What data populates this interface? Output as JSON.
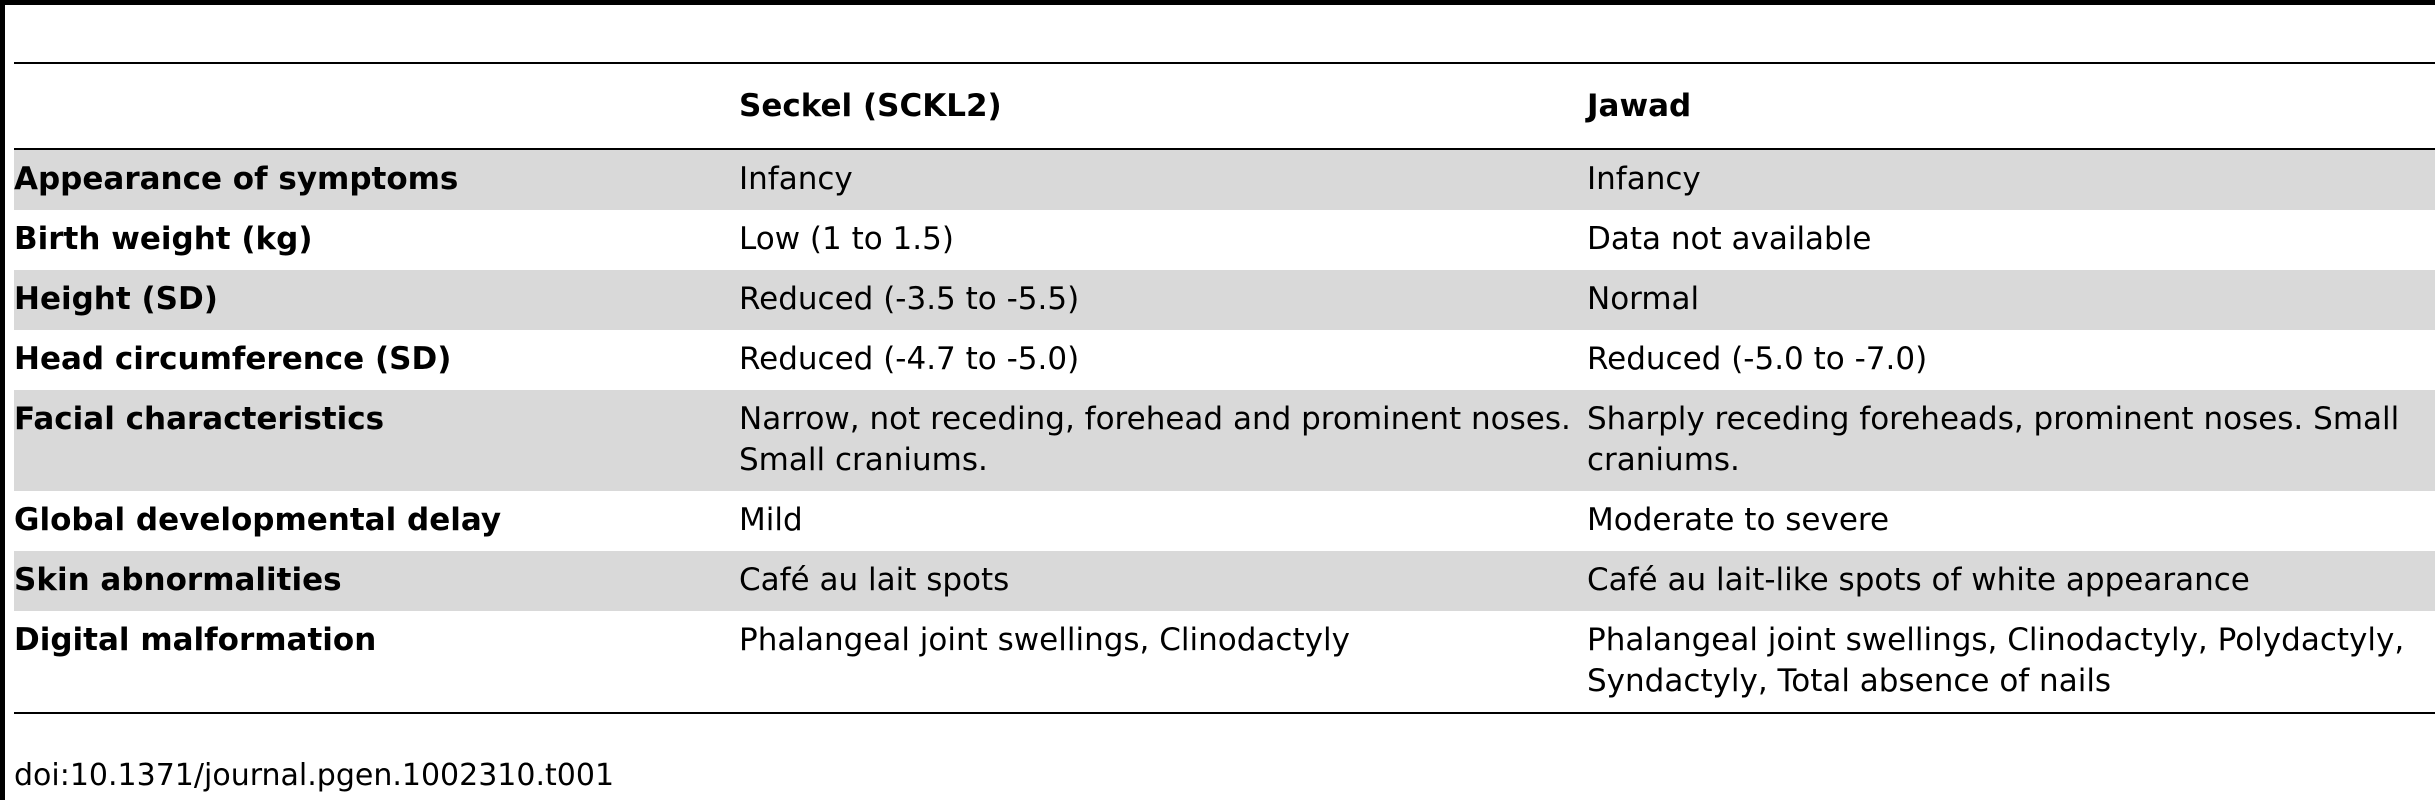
{
  "table": {
    "columns": [
      "",
      "Seckel (SCKL2)",
      "Jawad"
    ],
    "rows": [
      {
        "label": "Appearance of symptoms",
        "seckel": "Infancy",
        "jawad": "Infancy",
        "shaded": true
      },
      {
        "label": "Birth weight (kg)",
        "seckel": "Low (1 to 1.5)",
        "jawad": "Data not available",
        "shaded": false
      },
      {
        "label": "Height (SD)",
        "seckel": "Reduced (-3.5 to -5.5)",
        "jawad": "Normal",
        "shaded": true
      },
      {
        "label": "Head circumference (SD)",
        "seckel": "Reduced (-4.7 to -5.0)",
        "jawad": "Reduced (-5.0 to -7.0)",
        "shaded": false
      },
      {
        "label": "Facial characteristics",
        "seckel": "Narrow, not receding, forehead and prominent noses. Small craniums.",
        "jawad": "Sharply receding foreheads, prominent noses. Small craniums.",
        "shaded": true
      },
      {
        "label": "Global developmental delay",
        "seckel": "Mild",
        "jawad": "Moderate to severe",
        "shaded": false
      },
      {
        "label": "Skin abnormalities",
        "seckel": "Café au lait spots",
        "jawad": "Café au lait-like spots of white appearance",
        "shaded": true
      },
      {
        "label": "Digital malformation",
        "seckel": "Phalangeal joint swellings, Clinodactyly",
        "jawad": "Phalangeal joint swellings, Clinodactyly, Polydactyly, Syndactyly, Total absence of nails",
        "shaded": false
      }
    ]
  },
  "footer": {
    "doi": "doi:10.1371/journal.pgen.1002310.t001"
  }
}
